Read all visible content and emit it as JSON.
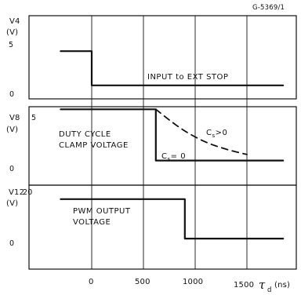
{
  "figure_id": "G-5369/1",
  "chart_data": {
    "type": "line",
    "x_axis": {
      "ticks": [
        "0",
        "500",
        "1000",
        "1500"
      ],
      "tick_values": [
        0,
        500,
        1000,
        1500
      ],
      "unit": "(ns)",
      "symbol": "τ",
      "subscript": "d",
      "xlim": [
        -300,
        1850
      ]
    },
    "panels": [
      {
        "id": "v4",
        "label": "V4",
        "unit": "(V)",
        "ticks": [
          "5",
          "0"
        ],
        "tick_values": [
          5,
          0
        ],
        "ylim": [
          0,
          6.3
        ],
        "text": "INPUT to EXT STOP",
        "series": [
          {
            "values": [
              [
                -300,
                4.2
              ],
              [
                0,
                4.2
              ],
              [
                0,
                0.8
              ],
              [
                1850,
                0.8
              ]
            ]
          }
        ]
      },
      {
        "id": "v8",
        "label": "V8",
        "unit": "(V)",
        "ticks": [
          "5",
          "0"
        ],
        "tick_values": [
          5,
          0
        ],
        "ylim": [
          0,
          6.1
        ],
        "text_lines": [
          "DUTY CYCLE",
          "CLAMP VOLTAGE"
        ],
        "series": [
          {
            "name": "C",
            "name_sub": "s",
            "name_rel": "= 0",
            "values": [
              [
                -300,
                5.6
              ],
              [
                620,
                5.6
              ],
              [
                620,
                0.5
              ],
              [
                1850,
                0.5
              ]
            ]
          },
          {
            "name": "C",
            "name_sub": "s",
            "name_rel": ">0",
            "style": "dashed",
            "values": [
              [
                620,
                5.6
              ],
              [
                740,
                4.6
              ],
              [
                900,
                3.4
              ],
              [
                1100,
                2.3
              ],
              [
                1300,
                1.6
              ],
              [
                1500,
                1.1
              ]
            ]
          }
        ]
      },
      {
        "id": "v12",
        "label": "V12",
        "unit": "(V)",
        "ticks": [
          "20",
          "0"
        ],
        "tick_values": [
          20,
          0
        ],
        "ylim": [
          0,
          23
        ],
        "text_lines": [
          "PWM OUTPUT",
          "VOLTAGE"
        ],
        "series": [
          {
            "values": [
              [
                -300,
                17
              ],
              [
                900,
                17
              ],
              [
                900,
                1.5
              ],
              [
                1850,
                1.5
              ]
            ]
          }
        ]
      }
    ]
  },
  "colors": {
    "line": "#111111",
    "grid": "#151515",
    "text": "#111111"
  }
}
